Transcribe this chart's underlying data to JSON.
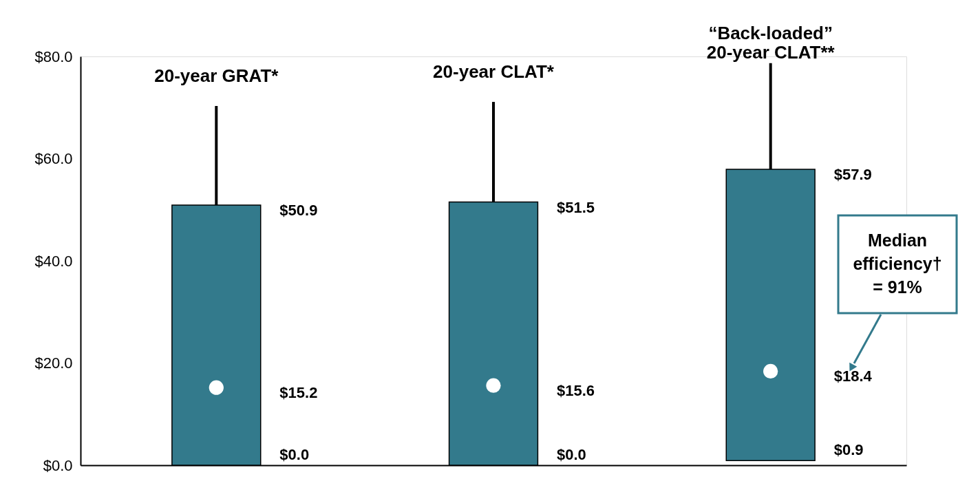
{
  "chart_data": {
    "type": "box",
    "categories": [
      "20-year GRAT*",
      "20-year CLAT*",
      "“Back-loaded”\n20-year CLAT**"
    ],
    "boxes": [
      {
        "low": 0.0,
        "q1": 0.0,
        "median": 15.2,
        "q3": 50.9,
        "high": 70.3
      },
      {
        "low": 0.0,
        "q1": 0.0,
        "median": 15.6,
        "q3": 51.5,
        "high": 71.1
      },
      {
        "low": 0.9,
        "q1": 0.9,
        "median": 18.4,
        "q3": 57.9,
        "high": 78.7
      }
    ],
    "value_labels": [
      [
        "$0.0",
        "$15.2",
        "$50.9"
      ],
      [
        "$0.0",
        "$15.6",
        "$51.5"
      ],
      [
        "$0.9",
        "$18.4",
        "$57.9"
      ]
    ],
    "color": "#337a8c",
    "ylim": [
      0,
      80
    ],
    "yticks": [
      {
        "value": 0,
        "label": "$0.0"
      },
      {
        "value": 20,
        "label": "$20.0"
      },
      {
        "value": 40,
        "label": "$40.0"
      },
      {
        "value": 60,
        "label": "$60.0"
      },
      {
        "value": 80,
        "label": "$80.0"
      }
    ],
    "tick_labels": "y",
    "grid": false,
    "annotations": [
      "Median\nefficiency†\n= 91%"
    ]
  }
}
